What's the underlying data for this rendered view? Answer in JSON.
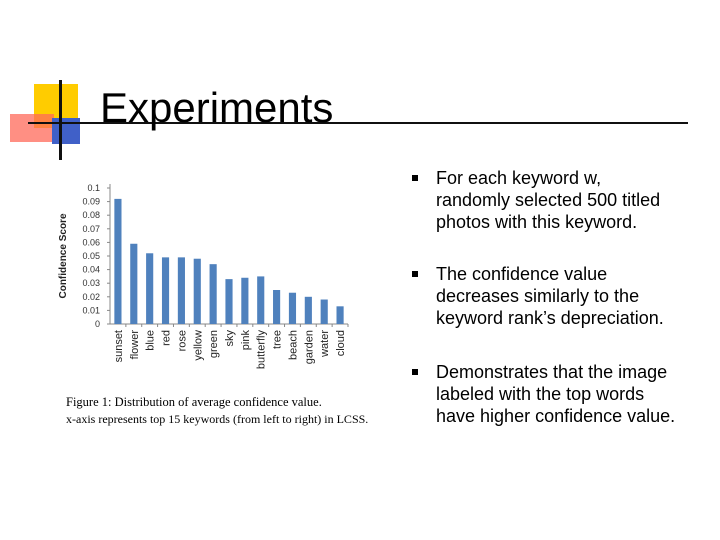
{
  "slide": {
    "title": "Experiments",
    "accent_colors": {
      "yellow": "#ffcc00",
      "red": "#ff6a5a",
      "blue": "#4060c8"
    }
  },
  "caption": {
    "line1": "Figure 1: Distribution of average confidence value.",
    "line2": "x-axis represents top 15 keywords (from left to right)  in LCSS."
  },
  "bullets": [
    {
      "lines": [
        "For each keyword w,",
        "randomly selected 500 titled",
        "photos with this keyword."
      ]
    },
    {
      "lines": [
        "The confidence value",
        "decreases similarly to the",
        "keyword rank’s depreciation."
      ]
    },
    {
      "lines": [
        "Demonstrates that the image",
        "labeled with the top words",
        "have higher confidence value."
      ]
    }
  ],
  "chart_data": {
    "type": "bar",
    "title": "",
    "xlabel": "",
    "ylabel": "Confidence Score",
    "ylim": [
      0,
      0.1
    ],
    "yticks": [
      "0",
      "0.01",
      "0.02",
      "0.03",
      "0.04",
      "0.05",
      "0.06",
      "0.07",
      "0.08",
      "0.09",
      "0.1"
    ],
    "categories": [
      "sunset",
      "flower",
      "blue",
      "red",
      "rose",
      "yellow",
      "green",
      "sky",
      "pink",
      "butterfly",
      "tree",
      "beach",
      "garden",
      "water",
      "cloud"
    ],
    "values": [
      0.092,
      0.059,
      0.052,
      0.049,
      0.049,
      0.048,
      0.044,
      0.033,
      0.034,
      0.035,
      0.025,
      0.023,
      0.02,
      0.018,
      0.013
    ],
    "bar_color": "#4f81bd"
  }
}
